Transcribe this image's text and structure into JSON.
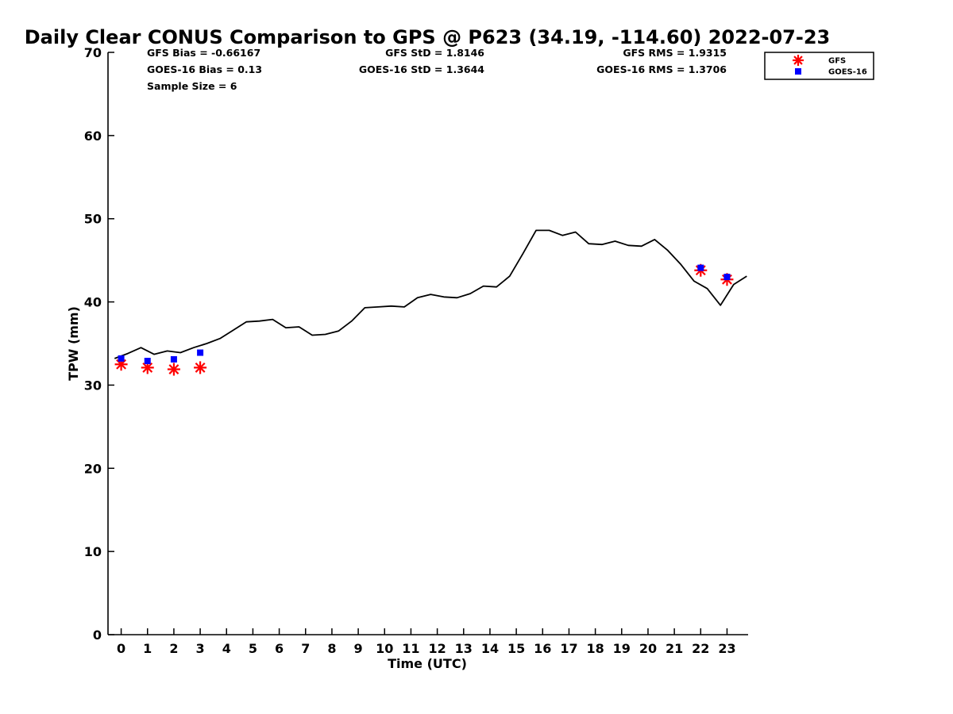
{
  "chart_data": {
    "type": "line",
    "title": "Daily Clear CONUS Comparison to GPS @ P623 (34.19, -114.60) 2022-07-23",
    "xlabel": "Time (UTC)",
    "ylabel": "TPW (mm)",
    "xlim": [
      -0.5,
      23.8
    ],
    "ylim": [
      0,
      70
    ],
    "xticks": [
      "0",
      "1",
      "2",
      "3",
      "4",
      "5",
      "6",
      "7",
      "8",
      "9",
      "10",
      "11",
      "12",
      "13",
      "14",
      "15",
      "16",
      "17",
      "18",
      "19",
      "20",
      "21",
      "22",
      "23"
    ],
    "yticks": [
      "0",
      "10",
      "20",
      "30",
      "40",
      "50",
      "60",
      "70"
    ],
    "grid": false,
    "legend_position": "top-right",
    "stats": {
      "gfs_bias": "GFS Bias = -0.66167",
      "goes_bias": "GOES-16 Bias = 0.13",
      "sample_size": "Sample Size = 6",
      "gfs_std": "GFS StD = 1.8146",
      "goes_std": "GOES-16 StD = 1.3644",
      "gfs_rms": "GFS RMS = 1.9315",
      "goes_rms": "GOES-16 RMS = 1.3706"
    },
    "series": [
      {
        "kind": "line",
        "color": "#000000",
        "x": [
          -0.25,
          0.25,
          0.75,
          1.25,
          1.75,
          2.25,
          2.75,
          3.25,
          3.75,
          4.25,
          4.75,
          5.25,
          5.75,
          6.25,
          6.75,
          7.25,
          7.75,
          8.25,
          8.75,
          9.25,
          9.75,
          10.25,
          10.75,
          11.25,
          11.75,
          12.25,
          12.75,
          13.25,
          13.75,
          14.25,
          14.75,
          15.25,
          15.75,
          16.25,
          16.75,
          17.25,
          17.75,
          18.25,
          18.75,
          19.25,
          19.75,
          20.25,
          20.75,
          21.25,
          21.75,
          22.25,
          22.75,
          23.25,
          23.75
        ],
        "y": [
          33.2,
          33.8,
          34.5,
          33.7,
          34.1,
          33.9,
          34.5,
          35.0,
          35.6,
          36.6,
          37.6,
          37.7,
          37.9,
          36.9,
          37.0,
          36.0,
          36.1,
          36.5,
          37.7,
          39.3,
          39.4,
          39.5,
          39.4,
          40.5,
          40.9,
          40.6,
          40.5,
          41.0,
          41.9,
          41.8,
          43.1,
          45.8,
          48.6,
          48.6,
          48.0,
          48.4,
          47.0,
          46.9,
          47.3,
          46.8,
          46.7,
          47.5,
          46.2,
          44.5,
          42.5,
          41.6,
          39.6,
          42.1,
          43.1
        ]
      },
      {
        "name": "GFS",
        "kind": "marker",
        "marker": "asterisk",
        "color": "#ff0000",
        "x": [
          0,
          1,
          2,
          3,
          22,
          23
        ],
        "y": [
          32.5,
          32.1,
          31.9,
          32.1,
          43.8,
          42.7
        ]
      },
      {
        "name": "GOES-16",
        "kind": "marker",
        "marker": "square",
        "color": "#0000ff",
        "x": [
          0,
          1,
          2,
          3,
          22,
          23
        ],
        "y": [
          33.2,
          32.9,
          33.1,
          33.9,
          44.1,
          43.0
        ]
      }
    ]
  }
}
